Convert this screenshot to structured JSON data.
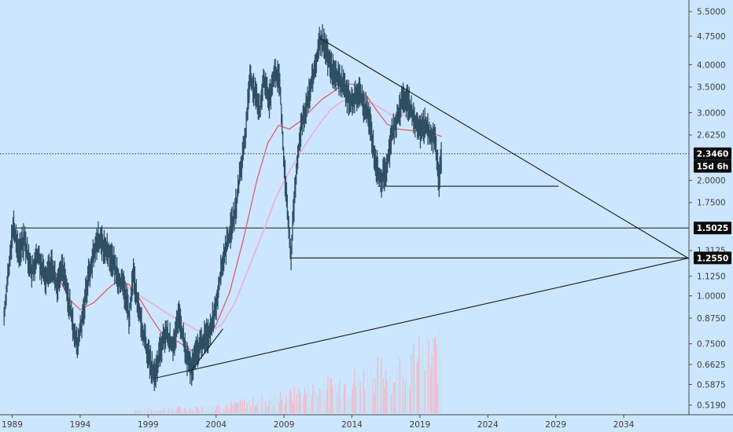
{
  "colors": {
    "background": "#cce6ff",
    "axis": "#4a4a4a",
    "candle_body": "#2f4f63",
    "ma_fast": "#e0535f",
    "ma_slow": "#e6b7d6",
    "volume": "#f3b6c6",
    "trendline": "#1a1a1a",
    "badge": "#0d0d0d"
  },
  "chart_data": {
    "type": "line",
    "title": "",
    "xlabel": "",
    "ylabel": "",
    "scale": "log",
    "grid": false,
    "x_range": [
      1988.1,
      2038.8
    ],
    "y_range": [
      0.49,
      5.9
    ],
    "x_ticks": [
      {
        "value": 1989,
        "label": "1989"
      },
      {
        "value": 1994,
        "label": "1994"
      },
      {
        "value": 1999,
        "label": "1999"
      },
      {
        "value": 2004,
        "label": "2004"
      },
      {
        "value": 2009,
        "label": "2009"
      },
      {
        "value": 2014,
        "label": "2014"
      },
      {
        "value": 2019,
        "label": "2019"
      },
      {
        "value": 2024,
        "label": "2024"
      },
      {
        "value": 2029,
        "label": "2029"
      },
      {
        "value": 2034,
        "label": "2034"
      }
    ],
    "y_ticks": [
      {
        "value": 5.5,
        "label": "5.5000"
      },
      {
        "value": 4.75,
        "label": "4.7500"
      },
      {
        "value": 4.0,
        "label": "4.0000"
      },
      {
        "value": 3.5,
        "label": "3.5000"
      },
      {
        "value": 3.0,
        "label": "3.0000"
      },
      {
        "value": 2.625,
        "label": "2.6250"
      },
      {
        "value": 2.0,
        "label": "2.0000"
      },
      {
        "value": 1.75,
        "label": "1.7500"
      },
      {
        "value": 1.3125,
        "label": "1.3125"
      },
      {
        "value": 1.125,
        "label": "1.1250"
      },
      {
        "value": 1.0,
        "label": "1.0000"
      },
      {
        "value": 0.875,
        "label": "0.8750"
      },
      {
        "value": 0.75,
        "label": "0.7500"
      },
      {
        "value": 0.6625,
        "label": "0.6625"
      },
      {
        "value": 0.5875,
        "label": "0.5875"
      },
      {
        "value": 0.519,
        "label": "0.5190"
      }
    ],
    "price_series": [
      [
        1988.4,
        0.88
      ],
      [
        1988.9,
        1.35
      ],
      [
        1989.1,
        1.51
      ],
      [
        1989.5,
        1.3
      ],
      [
        1989.9,
        1.4
      ],
      [
        1990.4,
        1.15
      ],
      [
        1990.9,
        1.28
      ],
      [
        1991.4,
        1.1
      ],
      [
        1991.9,
        1.22
      ],
      [
        1992.3,
        1.05
      ],
      [
        1992.7,
        1.18
      ],
      [
        1993.1,
        1.0
      ],
      [
        1993.5,
        0.82
      ],
      [
        1993.8,
        0.74
      ],
      [
        1994.2,
        0.9
      ],
      [
        1994.6,
        1.12
      ],
      [
        1995.0,
        1.28
      ],
      [
        1995.3,
        1.42
      ],
      [
        1995.7,
        1.35
      ],
      [
        1996.1,
        1.3
      ],
      [
        1996.5,
        1.2
      ],
      [
        1996.9,
        1.1
      ],
      [
        1997.3,
        1.02
      ],
      [
        1997.6,
        0.88
      ],
      [
        1997.9,
        1.15
      ],
      [
        1998.3,
        0.92
      ],
      [
        1998.7,
        0.78
      ],
      [
        1999.1,
        0.68
      ],
      [
        1999.5,
        0.61
      ],
      [
        1999.9,
        0.72
      ],
      [
        2000.3,
        0.8
      ],
      [
        2000.8,
        0.74
      ],
      [
        2001.3,
        0.88
      ],
      [
        2001.8,
        0.7
      ],
      [
        2002.2,
        0.64
      ],
      [
        2002.6,
        0.72
      ],
      [
        2003.0,
        0.76
      ],
      [
        2003.5,
        0.8
      ],
      [
        2004.0,
        0.95
      ],
      [
        2004.3,
        1.12
      ],
      [
        2004.6,
        1.28
      ],
      [
        2005.0,
        1.45
      ],
      [
        2005.4,
        1.65
      ],
      [
        2005.8,
        2.1
      ],
      [
        2006.2,
        2.7
      ],
      [
        2006.5,
        3.8
      ],
      [
        2006.8,
        3.4
      ],
      [
        2007.2,
        3.0
      ],
      [
        2007.5,
        3.7
      ],
      [
        2007.9,
        3.2
      ],
      [
        2008.3,
        3.9
      ],
      [
        2008.7,
        3.55
      ],
      [
        2009.0,
        2.2
      ],
      [
        2009.3,
        1.6
      ],
      [
        2009.5,
        1.26
      ],
      [
        2009.8,
        1.85
      ],
      [
        2010.2,
        2.7
      ],
      [
        2010.6,
        3.1
      ],
      [
        2011.0,
        3.5
      ],
      [
        2011.4,
        4.1
      ],
      [
        2011.7,
        4.7
      ],
      [
        2012.1,
        4.3
      ],
      [
        2012.5,
        3.9
      ],
      [
        2012.9,
        3.7
      ],
      [
        2013.3,
        3.6
      ],
      [
        2013.7,
        3.3
      ],
      [
        2014.1,
        3.2
      ],
      [
        2014.5,
        3.4
      ],
      [
        2014.9,
        3.1
      ],
      [
        2015.3,
        2.9
      ],
      [
        2015.6,
        2.4
      ],
      [
        2015.9,
        2.1
      ],
      [
        2016.2,
        2.0
      ],
      [
        2016.6,
        2.2
      ],
      [
        2017.0,
        2.7
      ],
      [
        2017.4,
        2.95
      ],
      [
        2017.8,
        3.3
      ],
      [
        2018.2,
        3.15
      ],
      [
        2018.6,
        2.85
      ],
      [
        2019.0,
        2.7
      ],
      [
        2019.4,
        2.8
      ],
      [
        2019.8,
        2.6
      ],
      [
        2020.1,
        2.65
      ],
      [
        2020.4,
        1.98
      ],
      [
        2020.6,
        2.35
      ]
    ],
    "ma_fast": [
      [
        1991.5,
        1.22
      ],
      [
        1992.4,
        1.12
      ],
      [
        1993.2,
        0.98
      ],
      [
        1994.0,
        0.92
      ],
      [
        1995.0,
        0.96
      ],
      [
        1996.0,
        1.04
      ],
      [
        1996.8,
        1.1
      ],
      [
        1997.6,
        1.07
      ],
      [
        1998.4,
        0.98
      ],
      [
        1999.2,
        0.88
      ],
      [
        2000.2,
        0.78
      ],
      [
        2001.2,
        0.76
      ],
      [
        2002.2,
        0.72
      ],
      [
        2003.0,
        0.74
      ],
      [
        2004.0,
        0.84
      ],
      [
        2005.0,
        1.02
      ],
      [
        2006.0,
        1.4
      ],
      [
        2007.0,
        2.0
      ],
      [
        2007.8,
        2.5
      ],
      [
        2008.6,
        2.78
      ],
      [
        2009.4,
        2.72
      ],
      [
        2010.2,
        2.85
      ],
      [
        2011.0,
        3.05
      ],
      [
        2011.8,
        3.25
      ],
      [
        2012.6,
        3.4
      ],
      [
        2013.4,
        3.58
      ],
      [
        2014.2,
        3.55
      ],
      [
        2015.0,
        3.35
      ],
      [
        2015.8,
        3.05
      ],
      [
        2016.6,
        2.8
      ],
      [
        2017.4,
        2.72
      ],
      [
        2018.2,
        2.7
      ],
      [
        2019.0,
        2.68
      ],
      [
        2020.0,
        2.65
      ],
      [
        2020.6,
        2.6
      ]
    ],
    "ma_slow": [
      [
        1996.4,
        1.1
      ],
      [
        1997.4,
        1.06
      ],
      [
        1998.4,
        1.0
      ],
      [
        1999.4,
        0.95
      ],
      [
        2000.4,
        0.9
      ],
      [
        2001.4,
        0.86
      ],
      [
        2002.4,
        0.82
      ],
      [
        2003.4,
        0.8
      ],
      [
        2004.4,
        0.84
      ],
      [
        2005.4,
        0.96
      ],
      [
        2006.4,
        1.18
      ],
      [
        2007.4,
        1.45
      ],
      [
        2008.4,
        1.8
      ],
      [
        2009.2,
        2.05
      ],
      [
        2010.0,
        2.3
      ],
      [
        2010.8,
        2.55
      ],
      [
        2011.6,
        2.8
      ],
      [
        2012.4,
        3.05
      ],
      [
        2013.2,
        3.2
      ],
      [
        2014.0,
        3.3
      ],
      [
        2015.0,
        3.25
      ],
      [
        2016.0,
        3.1
      ],
      [
        2017.0,
        2.95
      ],
      [
        2018.0,
        2.95
      ],
      [
        2019.0,
        2.95
      ],
      [
        2019.8,
        2.88
      ]
    ],
    "volume_range": [
      1998.0,
      2020.6
    ],
    "horizontal_levels": [
      {
        "value": 1.5025,
        "from": 1989.1,
        "to": 2038.8,
        "label": "1.5025"
      },
      {
        "value": 1.255,
        "from": 2009.5,
        "to": 2038.8,
        "label": "1.2550"
      },
      {
        "value": 1.93,
        "from": 2015.9,
        "to": 2029.2,
        "label": ""
      }
    ],
    "trendlines": [
      {
        "name": "descending-resistance",
        "points": [
          [
            2011.6,
            4.7
          ],
          [
            2038.8,
            1.25
          ]
        ]
      },
      {
        "name": "ascending-support",
        "points": [
          [
            1999.5,
            0.61
          ],
          [
            2038.8,
            1.255
          ]
        ]
      },
      {
        "name": "lower-touch",
        "points": [
          [
            2002.2,
            0.64
          ],
          [
            2004.5,
            0.82
          ]
        ]
      }
    ],
    "current_price": {
      "value": 2.346,
      "label": "2.3460",
      "countdown": "15d 6h"
    }
  }
}
